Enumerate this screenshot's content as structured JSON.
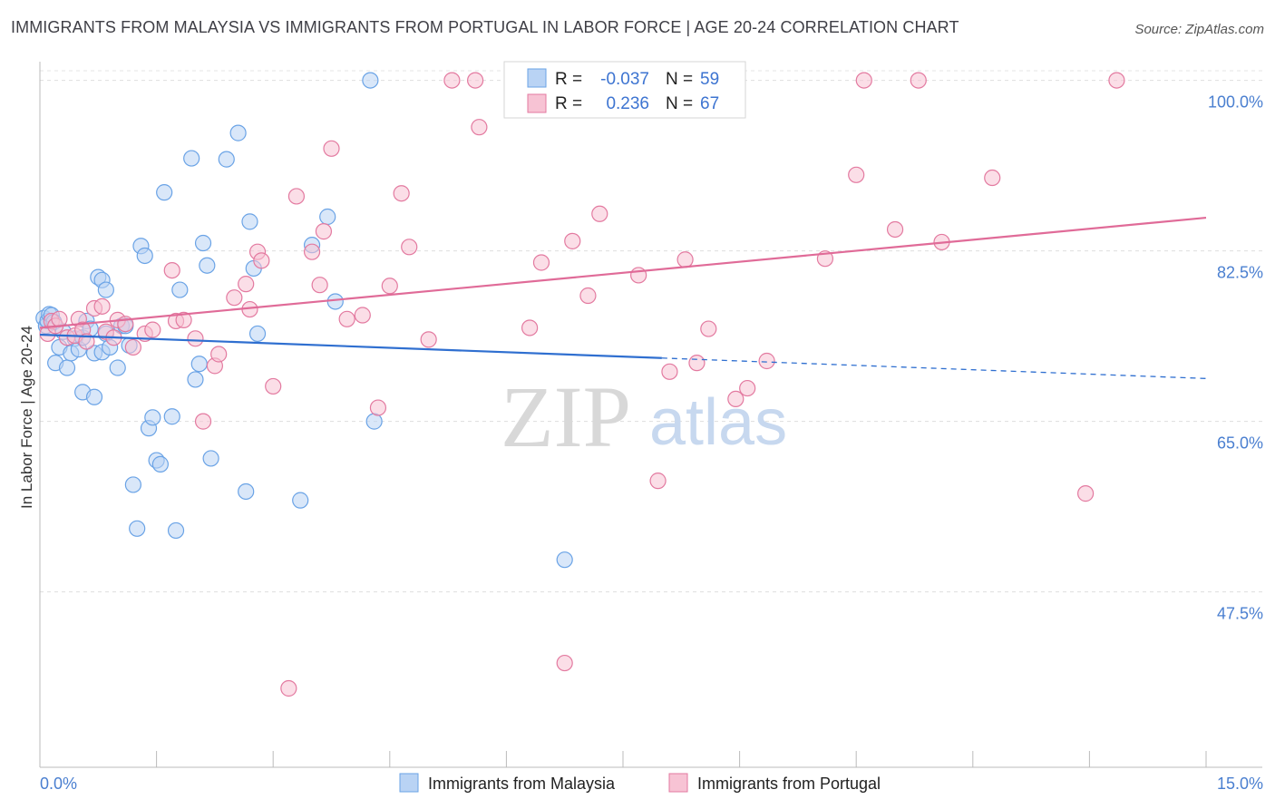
{
  "title": "IMMIGRANTS FROM MALAYSIA VS IMMIGRANTS FROM PORTUGAL IN LABOR FORCE | AGE 20-24 CORRELATION CHART",
  "source": "Source: ZipAtlas.com",
  "watermark": {
    "zip": "ZIP",
    "atlas": "atlas"
  },
  "legend": {
    "rows": [
      {
        "r_label": "R =",
        "r_value": "-0.037",
        "n_label": "N =",
        "n_value": "59"
      },
      {
        "r_label": "R =",
        "r_value": "0.236",
        "n_label": "N =",
        "n_value": "67"
      }
    ]
  },
  "chart_data": {
    "type": "scatter",
    "title": "IMMIGRANTS FROM MALAYSIA VS IMMIGRANTS FROM PORTUGAL IN LABOR FORCE | AGE 20-24 CORRELATION CHART",
    "xlabel": "",
    "ylabel": "In Labor Force | Age 20-24",
    "xlim": [
      0,
      15
    ],
    "ylim": [
      29.5,
      100.8
    ],
    "x_tick_labels": [
      "0.0%",
      "15.0%"
    ],
    "y_ticks": [
      47.5,
      65.0,
      82.5,
      100.0
    ],
    "y_tick_labels": [
      "47.5%",
      "65.0%",
      "82.5%",
      "100.0%"
    ],
    "grid": true,
    "legend_position": "top-center",
    "series": [
      {
        "name": "Immigrants from Malaysia",
        "color": "#6aa3e6",
        "fill": "#b9d3f4",
        "r": -0.037,
        "n": 59,
        "trend": {
          "x0": 0.0,
          "y0": 73.9,
          "x1": 8.0,
          "y1": 71.5,
          "dash_x1": 15.0,
          "dash_y1": 69.4
        },
        "points": [
          [
            0.05,
            75.6
          ],
          [
            0.08,
            74.8
          ],
          [
            0.1,
            75.3
          ],
          [
            0.12,
            76.0
          ],
          [
            0.15,
            75.9
          ],
          [
            0.18,
            75.2
          ],
          [
            0.2,
            71.0
          ],
          [
            0.25,
            72.6
          ],
          [
            0.3,
            74.2
          ],
          [
            0.35,
            70.5
          ],
          [
            0.4,
            72.0
          ],
          [
            0.45,
            73.5
          ],
          [
            0.5,
            72.4
          ],
          [
            0.55,
            73.6
          ],
          [
            0.6,
            75.3
          ],
          [
            0.65,
            74.5
          ],
          [
            0.55,
            68.0
          ],
          [
            0.7,
            72.0
          ],
          [
            0.75,
            79.8
          ],
          [
            0.8,
            79.5
          ],
          [
            0.85,
            78.5
          ],
          [
            0.7,
            67.5
          ],
          [
            0.8,
            72.1
          ],
          [
            0.85,
            74.0
          ],
          [
            0.9,
            72.6
          ],
          [
            1.0,
            70.5
          ],
          [
            1.05,
            74.8
          ],
          [
            1.1,
            74.8
          ],
          [
            1.15,
            72.8
          ],
          [
            1.2,
            58.5
          ],
          [
            1.25,
            54.0
          ],
          [
            1.3,
            83.0
          ],
          [
            1.35,
            82.0
          ],
          [
            1.4,
            64.3
          ],
          [
            1.45,
            65.4
          ],
          [
            1.5,
            61.0
          ],
          [
            1.55,
            60.6
          ],
          [
            1.6,
            88.5
          ],
          [
            1.7,
            65.5
          ],
          [
            1.75,
            53.8
          ],
          [
            1.8,
            78.5
          ],
          [
            1.95,
            92.0
          ],
          [
            2.0,
            69.3
          ],
          [
            2.05,
            70.9
          ],
          [
            2.1,
            83.3
          ],
          [
            2.15,
            81.0
          ],
          [
            2.2,
            61.2
          ],
          [
            2.4,
            91.9
          ],
          [
            2.55,
            94.6
          ],
          [
            2.65,
            57.8
          ],
          [
            2.7,
            85.5
          ],
          [
            2.75,
            80.7
          ],
          [
            2.8,
            74.0
          ],
          [
            3.35,
            56.9
          ],
          [
            3.5,
            83.1
          ],
          [
            3.7,
            86.0
          ],
          [
            3.8,
            77.3
          ],
          [
            4.3,
            65.0
          ],
          [
            4.25,
            100.0
          ],
          [
            6.75,
            50.8
          ]
        ]
      },
      {
        "name": "Immigrants from Portugal",
        "color": "#e37aa0",
        "fill": "#f7c3d4",
        "r": 0.236,
        "n": 67,
        "trend": {
          "x0": 0.0,
          "y0": 74.6,
          "x1": 15.0,
          "y1": 85.9
        },
        "points": [
          [
            0.1,
            74.0
          ],
          [
            0.15,
            75.3
          ],
          [
            0.2,
            74.8
          ],
          [
            0.25,
            75.5
          ],
          [
            0.35,
            73.6
          ],
          [
            0.45,
            73.8
          ],
          [
            0.5,
            75.5
          ],
          [
            0.55,
            74.4
          ],
          [
            0.6,
            73.2
          ],
          [
            0.7,
            76.6
          ],
          [
            0.8,
            76.8
          ],
          [
            0.85,
            74.2
          ],
          [
            0.95,
            73.6
          ],
          [
            1.0,
            75.4
          ],
          [
            1.1,
            75.0
          ],
          [
            1.2,
            72.6
          ],
          [
            1.35,
            74.0
          ],
          [
            1.45,
            74.4
          ],
          [
            1.7,
            80.5
          ],
          [
            1.75,
            75.3
          ],
          [
            1.85,
            75.4
          ],
          [
            2.0,
            73.5
          ],
          [
            2.1,
            65.0
          ],
          [
            2.25,
            70.7
          ],
          [
            2.3,
            71.9
          ],
          [
            2.5,
            77.7
          ],
          [
            2.65,
            79.1
          ],
          [
            2.7,
            76.5
          ],
          [
            2.8,
            82.4
          ],
          [
            2.85,
            81.5
          ],
          [
            3.0,
            68.6
          ],
          [
            3.2,
            37.6
          ],
          [
            3.3,
            88.1
          ],
          [
            3.5,
            82.4
          ],
          [
            3.6,
            79.0
          ],
          [
            3.65,
            84.5
          ],
          [
            3.75,
            93.0
          ],
          [
            3.95,
            75.5
          ],
          [
            4.15,
            75.9
          ],
          [
            4.35,
            66.4
          ],
          [
            4.5,
            78.9
          ],
          [
            4.65,
            88.4
          ],
          [
            4.75,
            82.9
          ],
          [
            5.0,
            73.4
          ],
          [
            5.3,
            100.0
          ],
          [
            5.6,
            100.0
          ],
          [
            5.65,
            95.2
          ],
          [
            6.3,
            74.6
          ],
          [
            6.45,
            81.3
          ],
          [
            6.6,
            100.0
          ],
          [
            6.75,
            40.2
          ],
          [
            6.85,
            83.5
          ],
          [
            7.05,
            77.9
          ],
          [
            7.2,
            86.3
          ],
          [
            7.7,
            80.0
          ],
          [
            7.95,
            58.9
          ],
          [
            8.1,
            70.1
          ],
          [
            8.3,
            81.6
          ],
          [
            8.45,
            71.0
          ],
          [
            8.6,
            74.5
          ],
          [
            8.95,
            67.3
          ],
          [
            9.1,
            68.4
          ],
          [
            9.35,
            71.2
          ],
          [
            10.1,
            81.7
          ],
          [
            10.5,
            90.3
          ],
          [
            10.6,
            100.0
          ],
          [
            11.0,
            84.7
          ],
          [
            11.3,
            100.0
          ],
          [
            11.6,
            83.4
          ],
          [
            12.25,
            90.0
          ],
          [
            13.45,
            57.6
          ],
          [
            13.85,
            100.0
          ]
        ]
      }
    ]
  }
}
